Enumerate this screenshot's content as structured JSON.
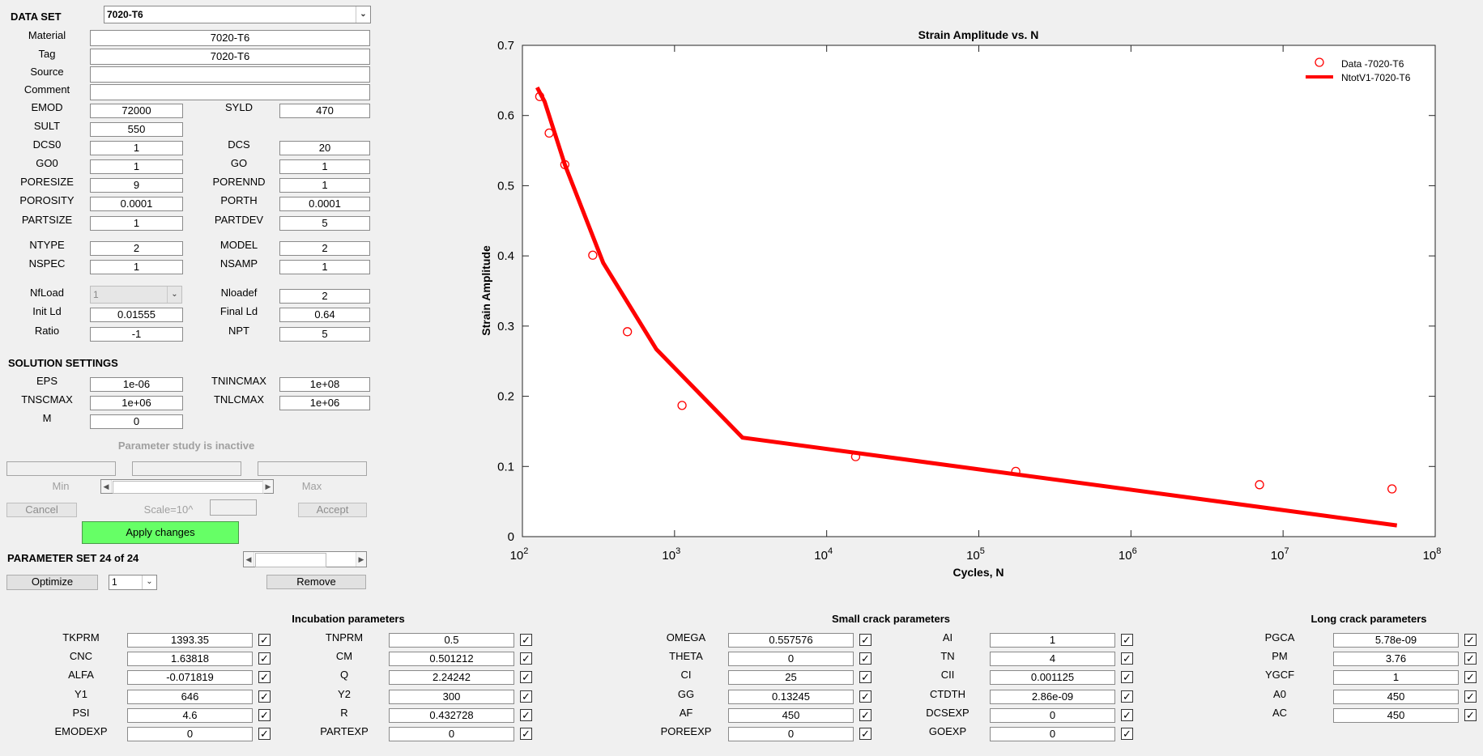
{
  "dataset": {
    "label": "DATA SET",
    "selected": "7020-T6",
    "fields": [
      {
        "name": "Material",
        "value": "7020-T6"
      },
      {
        "name": "Tag",
        "value": "7020-T6"
      },
      {
        "name": "Source",
        "value": ""
      },
      {
        "name": "Comment",
        "value": ""
      }
    ]
  },
  "material_params": [
    {
      "label": "EMOD",
      "value": "72000"
    },
    {
      "label": "SYLD",
      "value": "470"
    },
    {
      "label": "SULT",
      "value": "550"
    },
    {
      "label": "DCS0",
      "value": "1"
    },
    {
      "label": "DCS",
      "value": "20"
    },
    {
      "label": "GO0",
      "value": "1"
    },
    {
      "label": "GO",
      "value": "1"
    },
    {
      "label": "PORESIZE",
      "value": "9"
    },
    {
      "label": "PORENND",
      "value": "1"
    },
    {
      "label": "POROSITY",
      "value": "0.0001"
    },
    {
      "label": "PORTH",
      "value": "0.0001"
    },
    {
      "label": "PARTSIZE",
      "value": "1"
    },
    {
      "label": "PARTDEV",
      "value": "5"
    },
    {
      "label": "NTYPE",
      "value": "2"
    },
    {
      "label": "MODEL",
      "value": "2"
    },
    {
      "label": "NSPEC",
      "value": "1"
    },
    {
      "label": "NSAMP",
      "value": "1"
    },
    {
      "label": "NfLoad",
      "value": "1"
    },
    {
      "label": "Nloadef",
      "value": "2"
    },
    {
      "label": "Init Ld",
      "value": "0.01555"
    },
    {
      "label": "Final Ld",
      "value": "0.64"
    },
    {
      "label": "Ratio",
      "value": "-1"
    },
    {
      "label": "NPT",
      "value": "5"
    }
  ],
  "solution": {
    "header": "SOLUTION SETTINGS",
    "params": [
      {
        "label": "EPS",
        "value": "1e-06"
      },
      {
        "label": "TNINCMAX",
        "value": "1e+08"
      },
      {
        "label": "TNSCMAX",
        "value": "1e+06"
      },
      {
        "label": "TNLCMAX",
        "value": "1e+06"
      },
      {
        "label": "M",
        "value": "0"
      }
    ]
  },
  "param_study": {
    "status": "Parameter study is inactive",
    "min_label": "Min",
    "max_label": "Max",
    "scale_label": "Scale=10^",
    "cancel_label": "Cancel",
    "accept_label": "Accept"
  },
  "apply_label": "Apply changes",
  "param_set": {
    "label": "PARAMETER SET 24 of 24",
    "optimize_label": "Optimize",
    "selected": "1",
    "remove_label": "Remove"
  },
  "incubation": {
    "header": "Incubation parameters",
    "rows": [
      {
        "label": "TKPRM",
        "value": "1393.35",
        "checked": true
      },
      {
        "label": "TNPRM",
        "value": "0.5",
        "checked": true
      },
      {
        "label": "CNC",
        "value": "1.63818",
        "checked": true
      },
      {
        "label": "CM",
        "value": "0.501212",
        "checked": true
      },
      {
        "label": "ALFA",
        "value": "-0.071819",
        "checked": true
      },
      {
        "label": "Q",
        "value": "2.24242",
        "checked": true
      },
      {
        "label": "Y1",
        "value": "646",
        "checked": true
      },
      {
        "label": "Y2",
        "value": "300",
        "checked": true
      },
      {
        "label": "PSI",
        "value": "4.6",
        "checked": true
      },
      {
        "label": "R",
        "value": "0.432728",
        "checked": true
      },
      {
        "label": "EMODEXP",
        "value": "0",
        "checked": true
      },
      {
        "label": "PARTEXP",
        "value": "0",
        "checked": true
      }
    ]
  },
  "small_crack": {
    "header": "Small crack parameters",
    "rows": [
      {
        "label": "OMEGA",
        "value": "0.557576",
        "checked": true
      },
      {
        "label": "AI",
        "value": "1",
        "checked": true
      },
      {
        "label": "THETA",
        "value": "0",
        "checked": true
      },
      {
        "label": "TN",
        "value": "4",
        "checked": true
      },
      {
        "label": "CI",
        "value": "25",
        "checked": true
      },
      {
        "label": "CII",
        "value": "0.001125",
        "checked": true
      },
      {
        "label": "GG",
        "value": "0.13245",
        "checked": true
      },
      {
        "label": "CTDTH",
        "value": "2.86e-09",
        "checked": true
      },
      {
        "label": "AF",
        "value": "450",
        "checked": true
      },
      {
        "label": "DCSEXP",
        "value": "0",
        "checked": true
      },
      {
        "label": "POREEXP",
        "value": "0",
        "checked": true
      },
      {
        "label": "GOEXP",
        "value": "0",
        "checked": true
      }
    ]
  },
  "long_crack": {
    "header": "Long crack parameters",
    "rows": [
      {
        "label": "PGCA",
        "value": "5.78e-09",
        "checked": true
      },
      {
        "label": "PM",
        "value": "3.76",
        "checked": true
      },
      {
        "label": "YGCF",
        "value": "1",
        "checked": true
      },
      {
        "label": "A0",
        "value": "450",
        "checked": true
      },
      {
        "label": "AC",
        "value": "450",
        "checked": true
      }
    ]
  },
  "chart_data": {
    "type": "scatter",
    "title": "Strain Amplitude vs. N",
    "xlabel": "Cycles, N",
    "ylabel": "Strain Amplitude",
    "xscale": "log",
    "xlim": [
      100,
      100000000
    ],
    "ylim": [
      0,
      0.7
    ],
    "xticks": [
      {
        "base": "10",
        "exp": "2",
        "value": 100
      },
      {
        "base": "10",
        "exp": "3",
        "value": 1000
      },
      {
        "base": "10",
        "exp": "4",
        "value": 10000
      },
      {
        "base": "10",
        "exp": "5",
        "value": 100000
      },
      {
        "base": "10",
        "exp": "6",
        "value": 1000000
      },
      {
        "base": "10",
        "exp": "7",
        "value": 10000000
      },
      {
        "base": "10",
        "exp": "8",
        "value": 100000000
      }
    ],
    "yticks": [
      "0",
      "0.1",
      "0.2",
      "0.3",
      "0.4",
      "0.5",
      "0.6",
      "0.7"
    ],
    "grid": false,
    "legend_position": "top-right",
    "series": [
      {
        "name": "Data -7020-T6",
        "kind": "scatter",
        "marker": "open-circle",
        "color": "#ff0000",
        "points": [
          [
            130,
            0.627
          ],
          [
            150,
            0.575
          ],
          [
            190,
            0.53
          ],
          [
            290,
            0.401
          ],
          [
            490,
            0.292
          ],
          [
            1120,
            0.187
          ],
          [
            15500,
            0.114
          ],
          [
            175000,
            0.093
          ],
          [
            7000000,
            0.074
          ],
          [
            52000000,
            0.068
          ]
        ]
      },
      {
        "name": "NtotV1-7020-T6",
        "kind": "line",
        "color": "#ff0000",
        "points": [
          [
            125,
            0.64
          ],
          [
            140,
            0.62
          ],
          [
            190,
            0.53
          ],
          [
            340,
            0.39
          ],
          [
            760,
            0.267
          ],
          [
            2800,
            0.141
          ],
          [
            56000000,
            0.016
          ]
        ]
      }
    ]
  }
}
